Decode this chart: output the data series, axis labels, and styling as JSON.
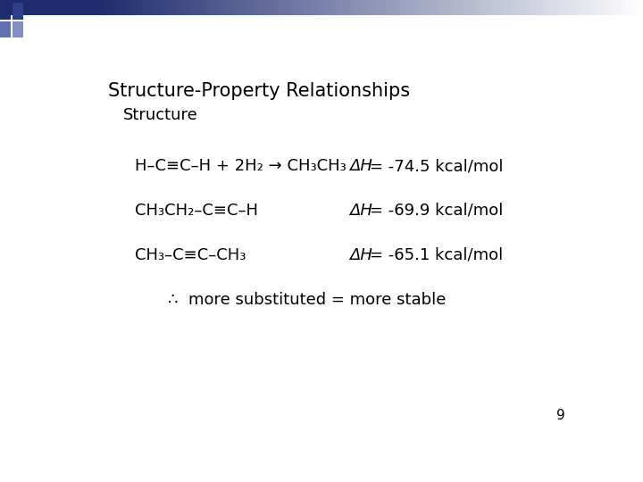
{
  "title": "Structure-Property Relationships",
  "subtitle": "Structure",
  "bg_color": "#ffffff",
  "title_color": "#000000",
  "title_fontsize": 15,
  "subtitle_fontsize": 13,
  "body_fontsize": 13,
  "page_number": "9",
  "rows": [
    {
      "left": "H–C≡C–H + 2H₂ → CH₃CH₃",
      "right_dh": "ΔH",
      "right_val": "= -74.5 kcal/mol"
    },
    {
      "left": "CH₃CH₂–C≡C–H",
      "right_dh": "ΔH",
      "right_val": "= -69.9 kcal/mol"
    },
    {
      "left": "CH₃–C≡C–CH₃",
      "right_dh": "ΔH",
      "right_val": "= -65.1 kcal/mol"
    }
  ],
  "conclusion": "∴  more substituted = more stable",
  "header_dark": "#1e2c6e",
  "header_mid": "#4a5aa0",
  "header_light": "#c8cce8"
}
